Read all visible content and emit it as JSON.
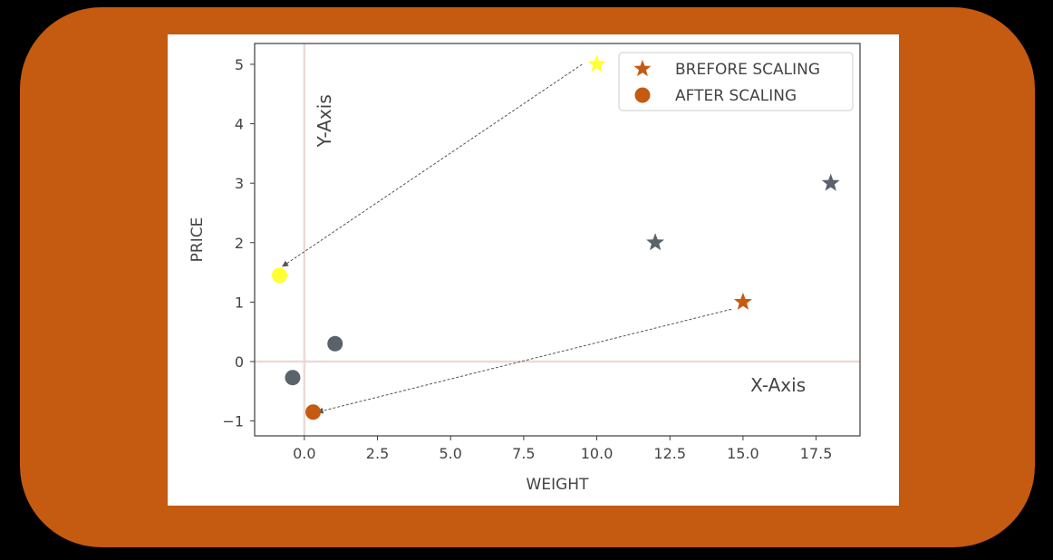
{
  "colors": {
    "frame": "#c55a11",
    "background": "#ffffff",
    "accent_orange": "#c55a11",
    "highlight_yellow": "#ffff33",
    "neutral_gray": "#5a636b",
    "axis_line": "#ecd9d6",
    "arrow": "#555555"
  },
  "chart_data": {
    "type": "scatter",
    "title": "",
    "xlabel": "WEIGHT",
    "ylabel": "PRICE",
    "xlim": [
      -1.7,
      19.0
    ],
    "ylim": [
      -1.25,
      5.35
    ],
    "x_ticks": [
      {
        "value": 0.0,
        "label": "0.0"
      },
      {
        "value": 2.5,
        "label": "2.5"
      },
      {
        "value": 5.0,
        "label": "5.0"
      },
      {
        "value": 7.5,
        "label": "7.5"
      },
      {
        "value": 10.0,
        "label": "10.0"
      },
      {
        "value": 12.5,
        "label": "12.5"
      },
      {
        "value": 15.0,
        "label": "15.0"
      },
      {
        "value": 17.5,
        "label": "17.5"
      }
    ],
    "y_ticks": [
      {
        "value": -1,
        "label": "−1"
      },
      {
        "value": 0,
        "label": "0"
      },
      {
        "value": 1,
        "label": "1"
      },
      {
        "value": 2,
        "label": "2"
      },
      {
        "value": 3,
        "label": "3"
      },
      {
        "value": 4,
        "label": "4"
      },
      {
        "value": 5,
        "label": "5"
      }
    ],
    "grid": false,
    "legend_position": "top-right",
    "legend": [
      {
        "label": "BREFORE SCALING",
        "marker": "star",
        "color": "#c55a11"
      },
      {
        "label": "AFTER SCALING",
        "marker": "circle",
        "color": "#c55a11"
      }
    ],
    "series": [
      {
        "name": "BREFORE SCALING",
        "marker": "star",
        "points": [
          {
            "x": 10,
            "y": 5,
            "color": "#ffff33"
          },
          {
            "x": 12,
            "y": 2,
            "color": "#5a636b"
          },
          {
            "x": 15,
            "y": 1,
            "color": "#c55a11"
          },
          {
            "x": 18,
            "y": 3,
            "color": "#5a636b"
          }
        ]
      },
      {
        "name": "AFTER SCALING",
        "marker": "circle",
        "points": [
          {
            "x": -0.85,
            "y": 1.45,
            "color": "#ffff33"
          },
          {
            "x": 1.05,
            "y": 0.3,
            "color": "#5a636b"
          },
          {
            "x": -0.4,
            "y": -0.27,
            "color": "#5a636b"
          },
          {
            "x": 0.3,
            "y": -0.85,
            "color": "#c55a11"
          }
        ]
      }
    ],
    "reference_lines": [
      {
        "axis": "x",
        "value": 0,
        "color": "#ecd9d6"
      },
      {
        "axis": "y",
        "value": 0,
        "color": "#ecd9d6"
      }
    ],
    "annotations": [
      {
        "text": "Y-Axis",
        "x": 0.9,
        "y": 4.05,
        "rotation": -90
      },
      {
        "text": "X-Axis",
        "x": 16.2,
        "y": -0.5,
        "rotation": 0
      }
    ],
    "arrows": [
      {
        "from": [
          9.5,
          5.0
        ],
        "to": [
          -0.75,
          1.6
        ]
      },
      {
        "from": [
          14.6,
          0.88
        ],
        "to": [
          0.45,
          -0.85
        ]
      }
    ]
  }
}
